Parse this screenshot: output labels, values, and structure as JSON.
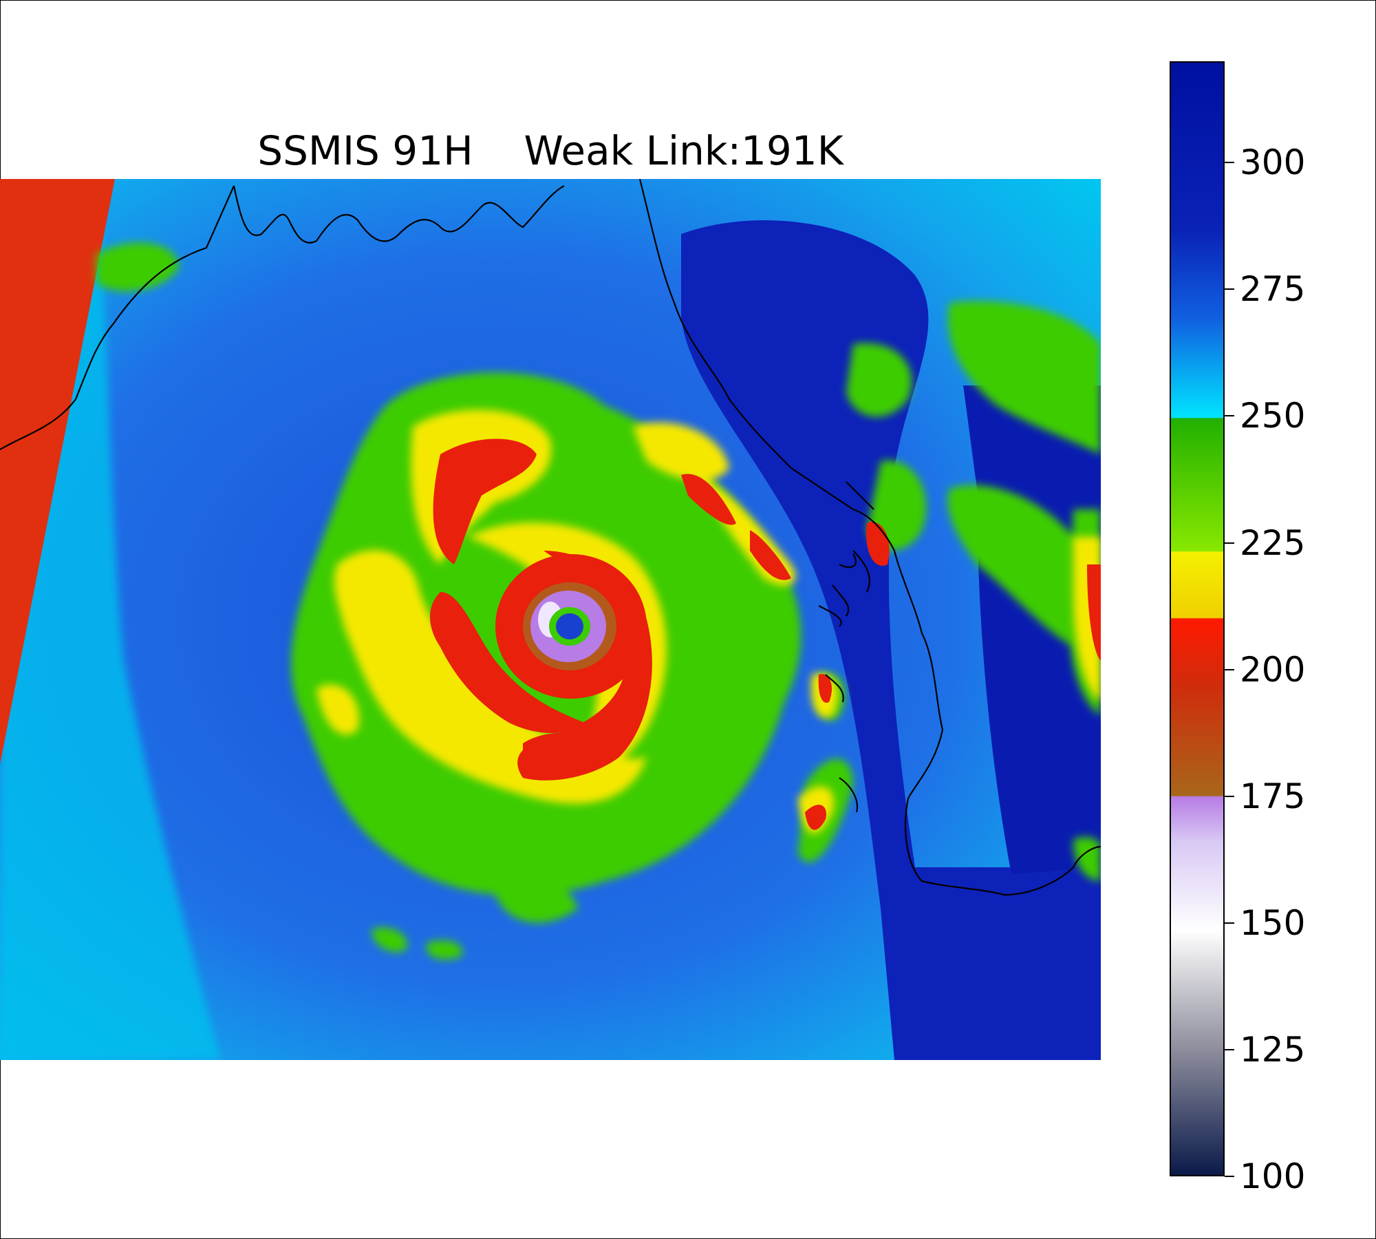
{
  "title": {
    "sensor": "SSMIS 91H",
    "weak_link": "Weak Link:191K"
  },
  "colorbar": {
    "min": 100,
    "max": 320,
    "ticks": [
      {
        "value": 300,
        "label": "300"
      },
      {
        "value": 275,
        "label": "275"
      },
      {
        "value": 250,
        "label": "250"
      },
      {
        "value": 225,
        "label": "225"
      },
      {
        "value": 200,
        "label": "200"
      },
      {
        "value": 175,
        "label": "175"
      },
      {
        "value": 150,
        "label": "150"
      },
      {
        "value": 125,
        "label": "125"
      },
      {
        "value": 100,
        "label": "100"
      }
    ],
    "colors": {
      "navy": "#0a1a4a",
      "gray": "#8a8a9a",
      "white": "#ffffff",
      "lavender": "#b77ce6",
      "brown": "#b25a1c",
      "red": "#e02010",
      "yellow": "#f5e800",
      "green": "#2fb800",
      "cyan": "#00c8f0",
      "blue": "#1a40d0",
      "dark_blue": "#0818a8"
    }
  },
  "map": {
    "colors": {
      "ocean_far": "#00b8ec",
      "ocean_mid": "#1a6ae0",
      "land_high": "#0d22b8",
      "swath_gap": "#e03010",
      "coast": "#000000"
    }
  }
}
